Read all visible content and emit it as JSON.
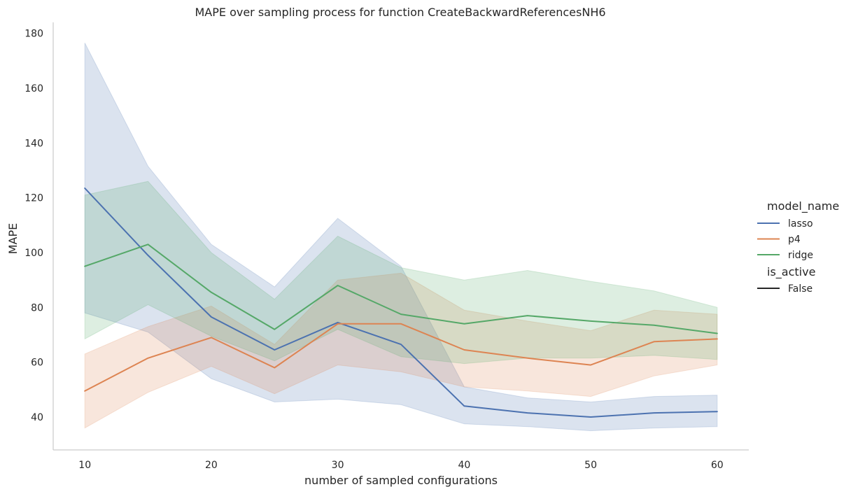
{
  "chart_data": {
    "type": "line",
    "title": "MAPE over sampling process for function CreateBackwardReferencesNH6",
    "xlabel": "number of sampled configurations",
    "ylabel": "MAPE",
    "x": [
      10,
      15,
      20,
      25,
      30,
      35,
      40,
      45,
      50,
      55,
      60
    ],
    "xticks": [
      10,
      20,
      30,
      40,
      50,
      60
    ],
    "yticks": [
      40,
      60,
      80,
      100,
      120,
      140,
      160,
      180
    ],
    "xlim": [
      7.5,
      62.5
    ],
    "ylim": [
      28,
      184
    ],
    "grid": false,
    "legend_position": "right",
    "legend_hue_title": "model_name",
    "legend_style_title": "is_active",
    "legend_style_entries": [
      "False"
    ],
    "series": [
      {
        "name": "lasso",
        "color": "#4c72b0",
        "values": [
          123.5,
          99,
          76.5,
          64.5,
          74.5,
          66.5,
          44,
          41.5,
          40,
          41.5,
          42
        ],
        "lower": [
          78,
          71,
          54,
          45.5,
          46.5,
          44.5,
          37.5,
          36.5,
          35,
          36,
          36.5
        ],
        "upper": [
          176.5,
          131.5,
          103,
          87.5,
          112.5,
          95,
          51,
          47,
          45.5,
          47.5,
          48
        ]
      },
      {
        "name": "p4",
        "color": "#dd8452",
        "values": [
          49.5,
          61.5,
          69,
          58,
          74,
          74,
          64.5,
          61.5,
          59,
          67.5,
          68.5
        ],
        "lower": [
          36,
          49,
          58.5,
          48.5,
          59,
          56.5,
          51,
          49.5,
          47.5,
          55,
          59
        ],
        "upper": [
          63,
          73,
          80.5,
          66.5,
          90,
          92.5,
          79,
          75,
          71.5,
          79,
          77.5
        ]
      },
      {
        "name": "ridge",
        "color": "#55a868",
        "values": [
          95,
          103,
          85.5,
          72,
          88,
          77.5,
          74,
          77,
          75,
          73.5,
          70.5
        ],
        "lower": [
          68.5,
          81,
          69.5,
          60.5,
          72,
          62,
          59.5,
          61.5,
          61.5,
          62.5,
          61
        ],
        "upper": [
          121,
          126,
          100,
          83,
          106,
          94.5,
          90,
          93.5,
          89.5,
          86,
          80
        ]
      }
    ]
  }
}
